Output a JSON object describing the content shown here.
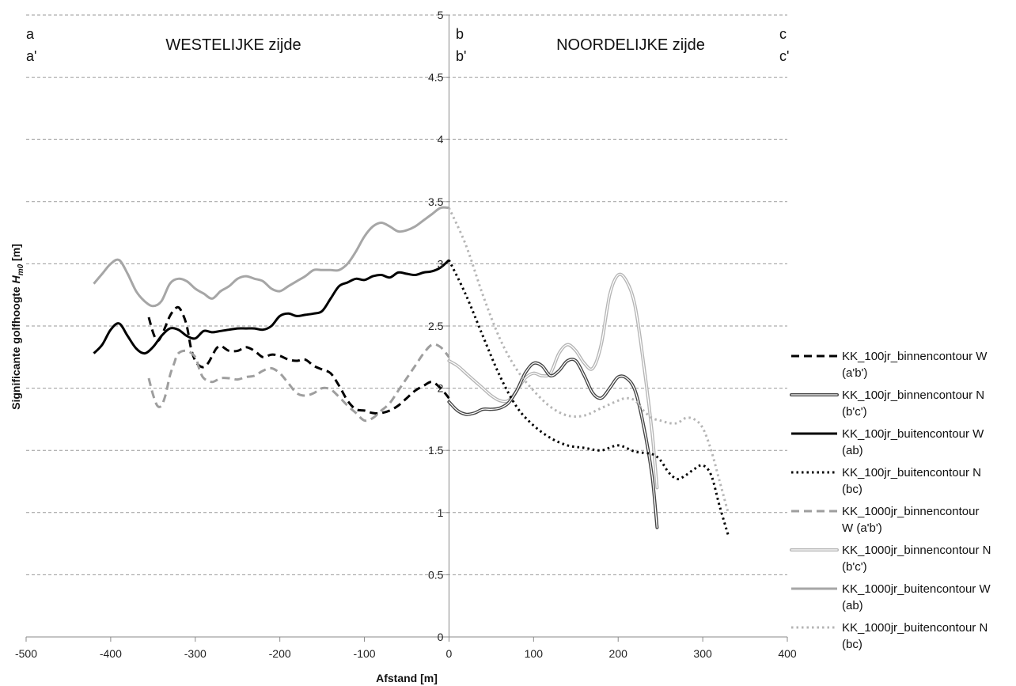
{
  "chart_data": {
    "type": "line",
    "xlabel": "Afstand [m]",
    "ylabel": "Significante golfhoogte Hm0 [m]",
    "ylabel_parts": {
      "prefix": "Significante golfhoogte ",
      "symbol": "H",
      "subscript": "m0",
      "suffix": " [m]"
    },
    "xlim": [
      -500,
      400
    ],
    "ylim": [
      0,
      5
    ],
    "xticks": [
      -500,
      -400,
      -300,
      -200,
      -100,
      0,
      100,
      200,
      300,
      400
    ],
    "yticks": [
      0,
      0.5,
      1,
      1.5,
      2,
      2.5,
      3,
      3.5,
      4,
      4.5,
      5
    ],
    "grid": "horizontal dashed",
    "legend_position": "right",
    "annotations": {
      "west_title": "WESTELIJKE zijde",
      "north_title": "NOORDELIJKE zijde",
      "a": "a",
      "a_prime": "a'",
      "b": "b",
      "b_prime": "b'",
      "c": "c",
      "c_prime": "c'"
    },
    "series": [
      {
        "name": "KK_100jr_binnencontour W (a'b')",
        "legend_lines": [
          "KK_100jr_binnencontour W",
          "(a'b')"
        ],
        "color": "#000000",
        "style": "dashed",
        "width": 3,
        "x": [
          -355,
          -350,
          -345,
          -340,
          -335,
          -330,
          -325,
          -320,
          -315,
          -310,
          -305,
          -300,
          -295,
          -290,
          -285,
          -280,
          -275,
          -270,
          -265,
          -260,
          -250,
          -240,
          -230,
          -220,
          -210,
          -200,
          -190,
          -180,
          -170,
          -160,
          -150,
          -140,
          -130,
          -120,
          -110,
          -100,
          -90,
          -80,
          -70,
          -60,
          -50,
          -40,
          -30,
          -20,
          -10,
          0
        ],
        "y": [
          2.57,
          2.45,
          2.38,
          2.42,
          2.5,
          2.58,
          2.63,
          2.65,
          2.6,
          2.5,
          2.32,
          2.22,
          2.18,
          2.17,
          2.2,
          2.26,
          2.32,
          2.34,
          2.32,
          2.3,
          2.3,
          2.33,
          2.3,
          2.25,
          2.27,
          2.26,
          2.23,
          2.22,
          2.23,
          2.18,
          2.15,
          2.12,
          2.02,
          1.9,
          1.83,
          1.82,
          1.8,
          1.8,
          1.82,
          1.86,
          1.92,
          1.98,
          2.02,
          2.05,
          2.0,
          1.92
        ]
      },
      {
        "name": "KK_100jr_binnencontour N (b'c')",
        "legend_lines": [
          "KK_100jr_binnencontour N",
          "(b'c')"
        ],
        "color": "#444444",
        "style": "double",
        "width": 4,
        "x": [
          0,
          10,
          20,
          30,
          40,
          50,
          60,
          70,
          80,
          90,
          100,
          110,
          120,
          130,
          140,
          150,
          160,
          170,
          180,
          190,
          200,
          210,
          220,
          230,
          240,
          246
        ],
        "y": [
          1.89,
          1.82,
          1.79,
          1.8,
          1.83,
          1.83,
          1.84,
          1.88,
          1.98,
          2.12,
          2.2,
          2.18,
          2.1,
          2.14,
          2.22,
          2.22,
          2.1,
          1.96,
          1.92,
          2.0,
          2.09,
          2.08,
          1.98,
          1.7,
          1.3,
          0.88
        ]
      },
      {
        "name": "KK_100jr_buitencontour W (ab)",
        "legend_lines": [
          "KK_100jr_buitencontour W",
          "(ab)"
        ],
        "color": "#000000",
        "style": "solid",
        "width": 3,
        "x": [
          -420,
          -410,
          -400,
          -390,
          -380,
          -370,
          -360,
          -350,
          -340,
          -330,
          -320,
          -310,
          -300,
          -290,
          -280,
          -270,
          -260,
          -250,
          -240,
          -230,
          -220,
          -210,
          -200,
          -190,
          -180,
          -170,
          -160,
          -150,
          -140,
          -130,
          -120,
          -110,
          -100,
          -90,
          -80,
          -70,
          -60,
          -50,
          -40,
          -30,
          -20,
          -10,
          0
        ],
        "y": [
          2.28,
          2.35,
          2.47,
          2.52,
          2.42,
          2.32,
          2.28,
          2.33,
          2.42,
          2.48,
          2.47,
          2.42,
          2.4,
          2.46,
          2.45,
          2.46,
          2.47,
          2.48,
          2.48,
          2.48,
          2.47,
          2.5,
          2.58,
          2.6,
          2.58,
          2.59,
          2.6,
          2.62,
          2.72,
          2.82,
          2.85,
          2.88,
          2.87,
          2.9,
          2.91,
          2.89,
          2.93,
          2.92,
          2.91,
          2.93,
          2.94,
          2.97,
          3.03
        ]
      },
      {
        "name": "KK_100jr_buitencontour N (bc)",
        "legend_lines": [
          "KK_100jr_buitencontour N",
          "(bc)"
        ],
        "color": "#000000",
        "style": "dotted",
        "width": 3,
        "x": [
          0,
          20,
          40,
          60,
          80,
          100,
          120,
          140,
          160,
          180,
          200,
          220,
          240,
          250,
          260,
          270,
          280,
          290,
          300,
          310,
          320,
          330
        ],
        "y": [
          3.03,
          2.75,
          2.42,
          2.1,
          1.85,
          1.7,
          1.6,
          1.54,
          1.52,
          1.5,
          1.54,
          1.49,
          1.47,
          1.42,
          1.32,
          1.27,
          1.3,
          1.35,
          1.38,
          1.3,
          1.05,
          0.82
        ]
      },
      {
        "name": "KK_1000jr_binnencontour W (a'b')",
        "legend_lines": [
          "KK_1000jr_binnencontour",
          "W (a'b')"
        ],
        "color": "#9e9e9e",
        "style": "dashed",
        "width": 3,
        "x": [
          -355,
          -350,
          -345,
          -340,
          -335,
          -330,
          -325,
          -320,
          -310,
          -300,
          -295,
          -290,
          -280,
          -270,
          -260,
          -250,
          -240,
          -230,
          -220,
          -210,
          -200,
          -190,
          -180,
          -170,
          -160,
          -150,
          -140,
          -130,
          -120,
          -110,
          -100,
          -90,
          -80,
          -70,
          -60,
          -50,
          -40,
          -30,
          -20,
          -10,
          0
        ],
        "y": [
          2.08,
          1.95,
          1.86,
          1.86,
          1.95,
          2.1,
          2.2,
          2.28,
          2.3,
          2.25,
          2.15,
          2.08,
          2.05,
          2.08,
          2.08,
          2.07,
          2.09,
          2.1,
          2.14,
          2.16,
          2.12,
          2.04,
          1.96,
          1.94,
          1.96,
          2.0,
          1.99,
          1.93,
          1.86,
          1.8,
          1.74,
          1.76,
          1.82,
          1.88,
          1.98,
          2.08,
          2.18,
          2.28,
          2.35,
          2.33,
          2.25
        ]
      },
      {
        "name": "KK_1000jr_binnencontour N (b'c')",
        "legend_lines": [
          "KK_1000jr_binnencontour N",
          "(b'c')"
        ],
        "color": "#b5b5b5",
        "style": "double",
        "width": 4,
        "x": [
          0,
          10,
          20,
          30,
          40,
          50,
          60,
          70,
          80,
          90,
          100,
          110,
          120,
          130,
          140,
          150,
          160,
          170,
          180,
          190,
          200,
          210,
          220,
          230,
          240,
          246
        ],
        "y": [
          2.22,
          2.18,
          2.12,
          2.06,
          2.0,
          1.94,
          1.9,
          1.9,
          1.98,
          2.08,
          2.12,
          2.1,
          2.12,
          2.28,
          2.35,
          2.3,
          2.2,
          2.16,
          2.35,
          2.75,
          2.91,
          2.86,
          2.66,
          2.2,
          1.65,
          1.2
        ]
      },
      {
        "name": "KK_1000jr_buitencontour W (ab)",
        "legend_lines": [
          "KK_1000jr_buitencontour W",
          "(ab)"
        ],
        "color": "#a6a6a6",
        "style": "solid",
        "width": 3,
        "x": [
          -420,
          -410,
          -400,
          -390,
          -380,
          -370,
          -360,
          -350,
          -340,
          -330,
          -320,
          -310,
          -300,
          -290,
          -280,
          -270,
          -260,
          -250,
          -240,
          -230,
          -220,
          -210,
          -200,
          -190,
          -180,
          -170,
          -160,
          -150,
          -140,
          -130,
          -120,
          -110,
          -100,
          -90,
          -80,
          -70,
          -60,
          -50,
          -40,
          -30,
          -20,
          -10,
          0
        ],
        "y": [
          2.84,
          2.92,
          3.0,
          3.03,
          2.92,
          2.78,
          2.7,
          2.66,
          2.7,
          2.84,
          2.88,
          2.86,
          2.8,
          2.76,
          2.72,
          2.78,
          2.82,
          2.88,
          2.9,
          2.88,
          2.86,
          2.8,
          2.78,
          2.82,
          2.86,
          2.9,
          2.95,
          2.95,
          2.95,
          2.95,
          3.0,
          3.1,
          3.22,
          3.3,
          3.33,
          3.3,
          3.26,
          3.27,
          3.3,
          3.35,
          3.4,
          3.45,
          3.45
        ]
      },
      {
        "name": "KK_1000jr_buitencontour N (bc)",
        "legend_lines": [
          "KK_1000jr_buitencontour N",
          "(bc)"
        ],
        "color": "#b5b5b5",
        "style": "dotted",
        "width": 3,
        "x": [
          0,
          20,
          40,
          60,
          80,
          100,
          120,
          140,
          160,
          180,
          200,
          210,
          220,
          230,
          240,
          250,
          260,
          270,
          280,
          290,
          300,
          310,
          320,
          330
        ],
        "y": [
          3.45,
          3.15,
          2.75,
          2.4,
          2.15,
          1.98,
          1.85,
          1.78,
          1.78,
          1.84,
          1.9,
          1.92,
          1.9,
          1.82,
          1.76,
          1.74,
          1.72,
          1.72,
          1.76,
          1.75,
          1.68,
          1.5,
          1.25,
          1.0
        ]
      }
    ]
  }
}
